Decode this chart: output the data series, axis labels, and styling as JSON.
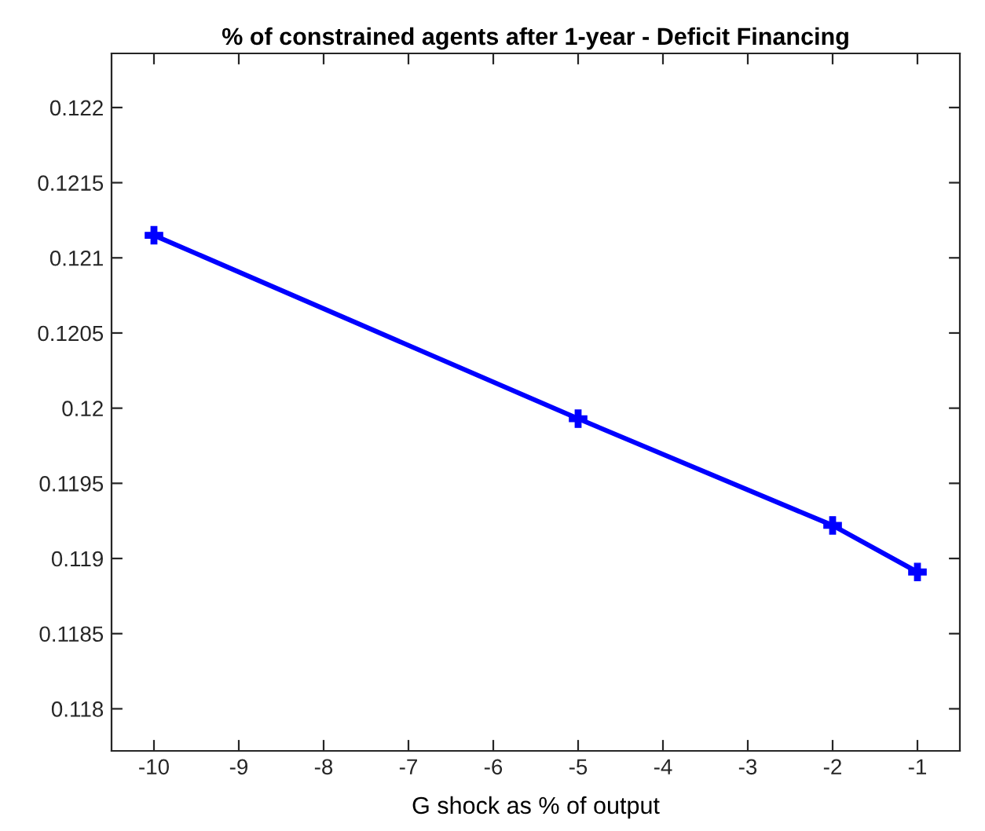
{
  "chart_data": {
    "type": "line",
    "title": "% of constrained agents after 1-year - Deficit Financing",
    "xlabel": "G shock as % of output",
    "x": [
      -10,
      -5,
      -2,
      -1
    ],
    "series": [
      {
        "color": "#0000ff",
        "values": [
          0.12115,
          0.11993,
          0.11922,
          0.11891
        ]
      }
    ],
    "marker": "cross",
    "line_style": "solid",
    "grid": false,
    "xlim": [
      -10.5,
      -0.5
    ],
    "xticks": [
      -10,
      -9,
      -8,
      -7,
      -6,
      -5,
      -4,
      -3,
      -2,
      -1
    ],
    "ylim": [
      0.11772,
      0.12236
    ],
    "yticks": [
      0.118,
      0.1185,
      0.119,
      0.1195,
      0.12,
      0.1205,
      0.121,
      0.1215,
      0.122
    ]
  }
}
